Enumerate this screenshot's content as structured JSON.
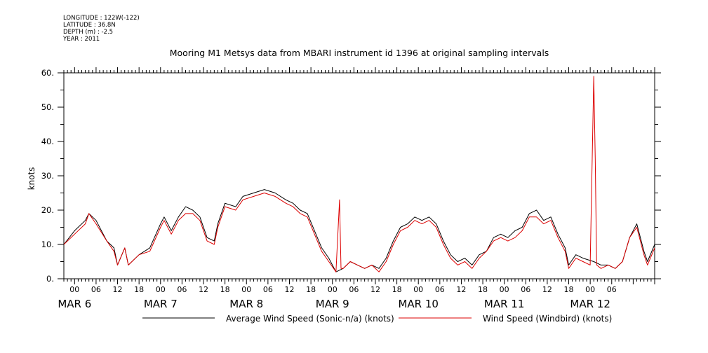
{
  "meta": {
    "longitude": "LONGITUDE : 122W(-122)",
    "latitude": "LATITUDE : 36.8N",
    "depth": "DEPTH (m) : -2.5",
    "year": "YEAR : 2011"
  },
  "colors": {
    "series_black": "#000000",
    "series_red": "#dd0000"
  },
  "chart_data": {
    "type": "line",
    "title": "Mooring M1 Metsys data from MBARI instrument id 1396 at original sampling intervals",
    "ylabel": "knots",
    "xlabel": "",
    "ylim": [
      0,
      60
    ],
    "yticks": [
      0,
      10,
      20,
      30,
      40,
      50,
      60
    ],
    "ytick_labels": [
      "0.",
      "10.",
      "20.",
      "30.",
      "40.",
      "50.",
      "60."
    ],
    "x_units": "hours since Mar 5 21:00 (2011)",
    "xlim": [
      0,
      165
    ],
    "hour_ticks": [
      "00",
      "06",
      "12",
      "18",
      "00",
      "06",
      "12",
      "18",
      "00",
      "06",
      "12",
      "18",
      "00",
      "06",
      "12",
      "18",
      "00",
      "06",
      "12",
      "18",
      "00",
      "06",
      "12",
      "18",
      "00",
      "06"
    ],
    "day_labels": [
      "MAR  6",
      "MAR  7",
      "MAR  8",
      "MAR  9",
      "MAR 10",
      "MAR 11",
      "MAR 12"
    ],
    "grid": false,
    "legend": "bottom",
    "series": [
      {
        "name": "Average Wind Speed (Sonic-n/a) (knots)",
        "color": "#000000",
        "points": [
          [
            0,
            10
          ],
          [
            3,
            14
          ],
          [
            6,
            17
          ],
          [
            7,
            19
          ],
          [
            9,
            17
          ],
          [
            12,
            11
          ],
          [
            14,
            9
          ],
          [
            15,
            4
          ],
          [
            17,
            9
          ],
          [
            18,
            4
          ],
          [
            21,
            7
          ],
          [
            24,
            9
          ],
          [
            27,
            16
          ],
          [
            28,
            18
          ],
          [
            30,
            14
          ],
          [
            32,
            18
          ],
          [
            34,
            21
          ],
          [
            36,
            20
          ],
          [
            38,
            18
          ],
          [
            40,
            12
          ],
          [
            42,
            11
          ],
          [
            43,
            16
          ],
          [
            45,
            22
          ],
          [
            48,
            21
          ],
          [
            50,
            24
          ],
          [
            53,
            25
          ],
          [
            56,
            26
          ],
          [
            59,
            25
          ],
          [
            62,
            23
          ],
          [
            64,
            22
          ],
          [
            66,
            20
          ],
          [
            68,
            19
          ],
          [
            70,
            14
          ],
          [
            72,
            9
          ],
          [
            74,
            6
          ],
          [
            76,
            2
          ],
          [
            78,
            3
          ],
          [
            80,
            5
          ],
          [
            82,
            4
          ],
          [
            84,
            3
          ],
          [
            86,
            4
          ],
          [
            88,
            3
          ],
          [
            90,
            6
          ],
          [
            92,
            11
          ],
          [
            94,
            15
          ],
          [
            96,
            16
          ],
          [
            98,
            18
          ],
          [
            100,
            17
          ],
          [
            102,
            18
          ],
          [
            104,
            16
          ],
          [
            106,
            11
          ],
          [
            108,
            7
          ],
          [
            110,
            5
          ],
          [
            112,
            6
          ],
          [
            114,
            4
          ],
          [
            116,
            7
          ],
          [
            118,
            8
          ],
          [
            120,
            12
          ],
          [
            122,
            13
          ],
          [
            124,
            12
          ],
          [
            126,
            14
          ],
          [
            128,
            15
          ],
          [
            130,
            19
          ],
          [
            132,
            20
          ],
          [
            134,
            17
          ],
          [
            136,
            18
          ],
          [
            138,
            13
          ],
          [
            140,
            9
          ],
          [
            141,
            4
          ],
          [
            143,
            7
          ],
          [
            145,
            6
          ],
          [
            148,
            5
          ],
          [
            150,
            4
          ],
          [
            152,
            4
          ],
          [
            154,
            3
          ],
          [
            156,
            5
          ],
          [
            158,
            12
          ],
          [
            160,
            16
          ],
          [
            162,
            8
          ],
          [
            163,
            5
          ],
          [
            165,
            10
          ]
        ]
      },
      {
        "name": "Wind Speed (Windbird) (knots)",
        "color": "#dd0000",
        "points": [
          [
            0,
            10
          ],
          [
            3,
            13
          ],
          [
            6,
            16
          ],
          [
            7,
            19
          ],
          [
            9,
            16
          ],
          [
            12,
            11
          ],
          [
            14,
            8
          ],
          [
            15,
            4
          ],
          [
            17,
            9
          ],
          [
            18,
            4
          ],
          [
            21,
            7
          ],
          [
            24,
            8
          ],
          [
            27,
            15
          ],
          [
            28,
            17
          ],
          [
            30,
            13
          ],
          [
            32,
            17
          ],
          [
            34,
            19
          ],
          [
            36,
            19
          ],
          [
            38,
            17
          ],
          [
            40,
            11
          ],
          [
            42,
            10
          ],
          [
            43,
            15
          ],
          [
            45,
            21
          ],
          [
            48,
            20
          ],
          [
            50,
            23
          ],
          [
            53,
            24
          ],
          [
            56,
            25
          ],
          [
            59,
            24
          ],
          [
            62,
            22
          ],
          [
            64,
            21
          ],
          [
            66,
            19
          ],
          [
            68,
            18
          ],
          [
            70,
            13
          ],
          [
            72,
            8
          ],
          [
            74,
            5
          ],
          [
            76,
            2
          ],
          [
            77,
            23
          ],
          [
            77.4,
            3
          ],
          [
            78,
            3
          ],
          [
            80,
            5
          ],
          [
            82,
            4
          ],
          [
            84,
            3
          ],
          [
            86,
            4
          ],
          [
            88,
            2
          ],
          [
            90,
            5
          ],
          [
            92,
            10
          ],
          [
            94,
            14
          ],
          [
            96,
            15
          ],
          [
            98,
            17
          ],
          [
            100,
            16
          ],
          [
            102,
            17
          ],
          [
            104,
            15
          ],
          [
            106,
            10
          ],
          [
            108,
            6
          ],
          [
            110,
            4
          ],
          [
            112,
            5
          ],
          [
            114,
            3
          ],
          [
            116,
            6
          ],
          [
            118,
            8
          ],
          [
            120,
            11
          ],
          [
            122,
            12
          ],
          [
            124,
            11
          ],
          [
            126,
            12
          ],
          [
            128,
            14
          ],
          [
            130,
            18
          ],
          [
            132,
            18
          ],
          [
            134,
            16
          ],
          [
            136,
            17
          ],
          [
            138,
            12
          ],
          [
            140,
            8
          ],
          [
            141,
            3
          ],
          [
            143,
            6
          ],
          [
            145,
            5
          ],
          [
            147,
            4
          ],
          [
            148,
            59
          ],
          [
            148.4,
            35
          ],
          [
            148.8,
            4
          ],
          [
            150,
            3
          ],
          [
            152,
            4
          ],
          [
            154,
            3
          ],
          [
            156,
            5
          ],
          [
            158,
            12
          ],
          [
            160,
            15
          ],
          [
            162,
            7
          ],
          [
            163,
            4
          ],
          [
            165,
            9
          ]
        ]
      }
    ]
  }
}
